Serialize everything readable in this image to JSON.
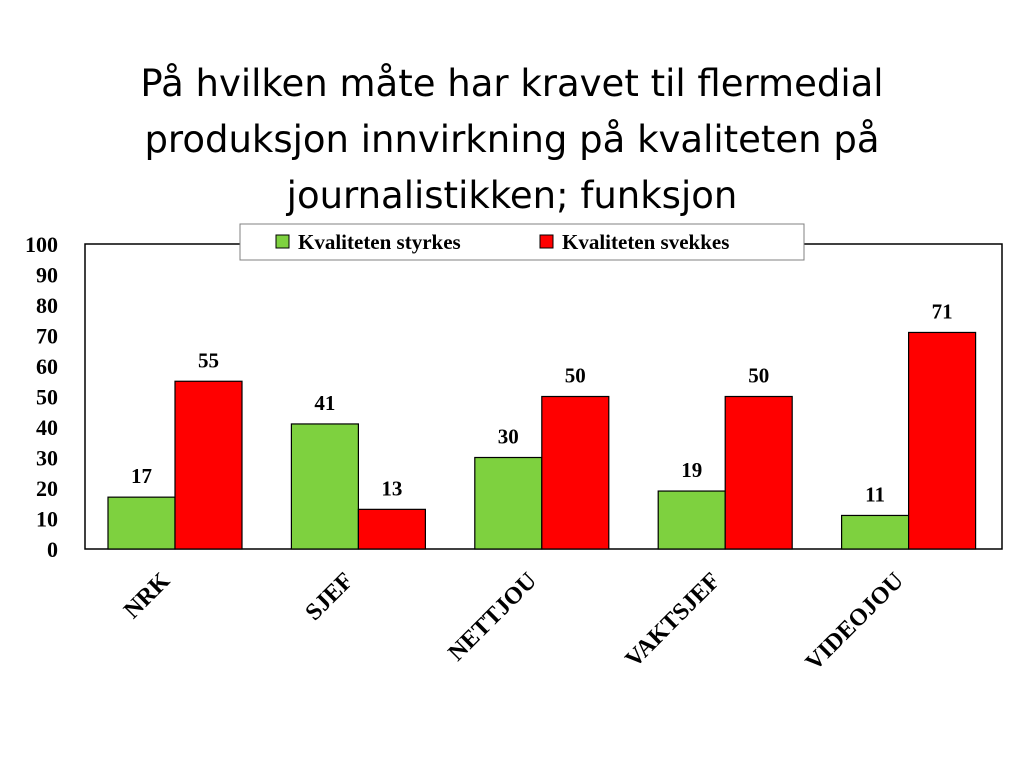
{
  "title_lines": [
    "På hvilken måte har kravet til flermedial",
    "produksjon innvirkning på kvaliteten på",
    "journalistikken; funksjon"
  ],
  "chart_data": {
    "type": "bar",
    "categories": [
      "NRK",
      "SJEF",
      "NETTJOU",
      "VAKTSJEF",
      "VIDEOJOU"
    ],
    "series": [
      {
        "name": "Kvaliteten styrkes",
        "values": [
          17,
          41,
          30,
          19,
          11
        ],
        "color": "#7ed13f"
      },
      {
        "name": "Kvaliteten svekkes",
        "values": [
          55,
          13,
          50,
          50,
          71
        ],
        "color": "#ff0000"
      }
    ],
    "ylim": [
      0,
      100
    ],
    "yticks": [
      0,
      10,
      20,
      30,
      40,
      50,
      60,
      70,
      80,
      90,
      100
    ],
    "grid": false,
    "legend": "top-center"
  }
}
